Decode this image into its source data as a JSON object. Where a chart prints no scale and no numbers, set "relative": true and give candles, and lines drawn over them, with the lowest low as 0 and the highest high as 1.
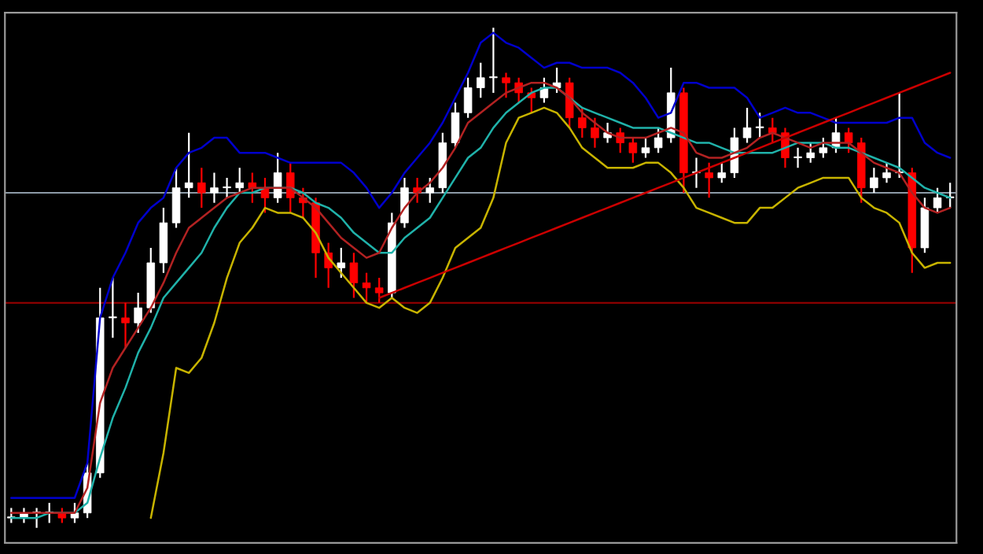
{
  "chart_data": {
    "type": "candlestick",
    "relative": true,
    "categories": [
      null,
      null,
      null,
      null,
      null,
      null,
      null,
      null,
      null,
      null,
      null,
      null,
      null,
      null,
      null,
      null,
      null,
      null,
      null,
      null,
      null,
      null,
      null,
      null,
      null,
      null,
      null,
      null,
      null,
      null,
      null,
      null,
      null,
      null,
      null,
      null,
      null,
      null,
      null,
      null,
      null,
      null,
      null,
      null,
      null,
      null,
      null,
      null,
      null,
      null,
      null,
      null,
      null,
      null,
      null,
      null,
      null,
      null,
      null,
      null,
      null,
      null,
      null,
      null,
      null,
      null,
      null,
      null,
      null,
      null,
      null,
      null,
      null,
      null,
      null
    ],
    "ohlc": [
      [
        0.02,
        0.04,
        0.01,
        0.02
      ],
      [
        0.02,
        0.04,
        0.01,
        0.03
      ],
      [
        0.03,
        0.04,
        0,
        0.03
      ],
      [
        0.03,
        0.05,
        0.01,
        0.03
      ],
      [
        0.03,
        0.04,
        0.01,
        0.02
      ],
      [
        0.02,
        0.05,
        0.01,
        0.03
      ],
      [
        0.03,
        0.13,
        0.02,
        0.11
      ],
      [
        0.11,
        0.48,
        0.1,
        0.42
      ],
      [
        0.42,
        0.5,
        0.38,
        0.42
      ],
      [
        0.42,
        0.45,
        0.36,
        0.41
      ],
      [
        0.41,
        0.47,
        0.39,
        0.44
      ],
      [
        0.44,
        0.56,
        0.43,
        0.53
      ],
      [
        0.53,
        0.64,
        0.51,
        0.61
      ],
      [
        0.61,
        0.72,
        0.6,
        0.68
      ],
      [
        0.68,
        0.79,
        0.66,
        0.69
      ],
      [
        0.69,
        0.72,
        0.64,
        0.67
      ],
      [
        0.67,
        0.71,
        0.65,
        0.68
      ],
      [
        0.68,
        0.7,
        0.66,
        0.68
      ],
      [
        0.68,
        0.72,
        0.67,
        0.69
      ],
      [
        0.69,
        0.71,
        0.65,
        0.68
      ],
      [
        0.68,
        0.7,
        0.63,
        0.66
      ],
      [
        0.66,
        0.75,
        0.65,
        0.71
      ],
      [
        0.71,
        0.73,
        0.63,
        0.66
      ],
      [
        0.66,
        0.68,
        0.62,
        0.65
      ],
      [
        0.65,
        0.66,
        0.5,
        0.55
      ],
      [
        0.55,
        0.57,
        0.48,
        0.52
      ],
      [
        0.52,
        0.56,
        0.5,
        0.53
      ],
      [
        0.53,
        0.55,
        0.46,
        0.49
      ],
      [
        0.49,
        0.51,
        0.45,
        0.48
      ],
      [
        0.48,
        0.5,
        0.45,
        0.47
      ],
      [
        0.47,
        0.63,
        0.46,
        0.61
      ],
      [
        0.61,
        0.7,
        0.6,
        0.68
      ],
      [
        0.68,
        0.7,
        0.65,
        0.67
      ],
      [
        0.67,
        0.7,
        0.65,
        0.68
      ],
      [
        0.68,
        0.79,
        0.67,
        0.77
      ],
      [
        0.77,
        0.85,
        0.76,
        0.83
      ],
      [
        0.83,
        0.9,
        0.82,
        0.88
      ],
      [
        0.88,
        0.93,
        0.86,
        0.9
      ],
      [
        0.9,
        1,
        0.87,
        0.9
      ],
      [
        0.9,
        0.91,
        0.86,
        0.89
      ],
      [
        0.89,
        0.9,
        0.85,
        0.87
      ],
      [
        0.87,
        0.88,
        0.83,
        0.86
      ],
      [
        0.86,
        0.9,
        0.85,
        0.88
      ],
      [
        0.88,
        0.92,
        0.87,
        0.89
      ],
      [
        0.89,
        0.9,
        0.8,
        0.82
      ],
      [
        0.82,
        0.84,
        0.78,
        0.8
      ],
      [
        0.8,
        0.82,
        0.76,
        0.78
      ],
      [
        0.78,
        0.81,
        0.77,
        0.79
      ],
      [
        0.79,
        0.8,
        0.75,
        0.77
      ],
      [
        0.77,
        0.78,
        0.73,
        0.75
      ],
      [
        0.75,
        0.78,
        0.74,
        0.76
      ],
      [
        0.76,
        0.8,
        0.75,
        0.78
      ],
      [
        0.78,
        0.92,
        0.77,
        0.87
      ],
      [
        0.87,
        0.88,
        0.67,
        0.71
      ],
      [
        0.71,
        0.74,
        0.68,
        0.71
      ],
      [
        0.71,
        0.73,
        0.66,
        0.7
      ],
      [
        0.7,
        0.73,
        0.69,
        0.71
      ],
      [
        0.71,
        0.8,
        0.7,
        0.78
      ],
      [
        0.78,
        0.84,
        0.77,
        0.8
      ],
      [
        0.8,
        0.83,
        0.78,
        0.8
      ],
      [
        0.8,
        0.82,
        0.77,
        0.79
      ],
      [
        0.79,
        0.8,
        0.72,
        0.74
      ],
      [
        0.74,
        0.76,
        0.72,
        0.74
      ],
      [
        0.74,
        0.77,
        0.73,
        0.75
      ],
      [
        0.75,
        0.78,
        0.74,
        0.76
      ],
      [
        0.76,
        0.82,
        0.75,
        0.79
      ],
      [
        0.79,
        0.8,
        0.75,
        0.77
      ],
      [
        0.77,
        0.78,
        0.65,
        0.68
      ],
      [
        0.68,
        0.72,
        0.67,
        0.7
      ],
      [
        0.7,
        0.73,
        0.69,
        0.71
      ],
      [
        0.71,
        0.87,
        0.7,
        0.71
      ],
      [
        0.71,
        0.72,
        0.51,
        0.56
      ],
      [
        0.56,
        0.66,
        0.55,
        0.64
      ],
      [
        0.64,
        0.68,
        0.63,
        0.66
      ],
      [
        0.66,
        0.69,
        0.64,
        0.66
      ]
    ],
    "colors": [
      "#ffffff",
      "#ffffff",
      "#ffffff",
      "#ffffff",
      "#ff0000",
      "#ffffff",
      "#ffffff",
      "#ffffff",
      "#ffffff",
      "#ff0000",
      "#ffffff",
      "#ffffff",
      "#ffffff",
      "#ffffff",
      "#ffffff",
      "#ff0000",
      "#ffffff",
      "#ffffff",
      "#ffffff",
      "#ff0000",
      "#ff0000",
      "#ffffff",
      "#ff0000",
      "#ff0000",
      "#ff0000",
      "#ff0000",
      "#ffffff",
      "#ff0000",
      "#ff0000",
      "#ff0000",
      "#ffffff",
      "#ffffff",
      "#ff0000",
      "#ffffff",
      "#ffffff",
      "#ffffff",
      "#ffffff",
      "#ffffff",
      "#ffffff",
      "#ff0000",
      "#ff0000",
      "#ff0000",
      "#ffffff",
      "#ffffff",
      "#ff0000",
      "#ff0000",
      "#ff0000",
      "#ffffff",
      "#ff0000",
      "#ff0000",
      "#ffffff",
      "#ffffff",
      "#ffffff",
      "#ff0000",
      "#ffffff",
      "#ff0000",
      "#ffffff",
      "#ffffff",
      "#ffffff",
      "#ffffff",
      "#ff0000",
      "#ff0000",
      "#ffffff",
      "#ffffff",
      "#ffffff",
      "#ffffff",
      "#ff0000",
      "#ff0000",
      "#ffffff",
      "#ffffff",
      "#ffffff",
      "#ff0000",
      "#ffffff",
      "#ffffff",
      "#ffffff"
    ],
    "series": [
      {
        "type": "line",
        "color": "#0000cd",
        "values": [
          0.06,
          0.06,
          0.06,
          0.06,
          0.06,
          0.06,
          0.13,
          0.42,
          0.5,
          0.55,
          0.61,
          0.64,
          0.66,
          0.72,
          0.75,
          0.76,
          0.78,
          0.78,
          0.75,
          0.75,
          0.75,
          0.74,
          0.73,
          0.73,
          0.73,
          0.73,
          0.73,
          0.71,
          0.68,
          0.64,
          0.67,
          0.71,
          0.74,
          0.77,
          0.81,
          0.86,
          0.91,
          0.97,
          0.99,
          0.97,
          0.96,
          0.94,
          0.92,
          0.93,
          0.93,
          0.92,
          0.92,
          0.92,
          0.91,
          0.89,
          0.86,
          0.82,
          0.83,
          0.89,
          0.89,
          0.88,
          0.88,
          0.88,
          0.86,
          0.82,
          0.83,
          0.84,
          0.83,
          0.83,
          0.82,
          0.81,
          0.81,
          0.81,
          0.81,
          0.81,
          0.82,
          0.82,
          0.77,
          0.75,
          0.74
        ]
      },
      {
        "type": "line",
        "color": "#20b2aa",
        "values": [
          0.02,
          0.02,
          0.02,
          0.03,
          0.03,
          0.03,
          0.05,
          0.14,
          0.22,
          0.28,
          0.35,
          0.4,
          0.46,
          0.49,
          0.52,
          0.55,
          0.6,
          0.64,
          0.67,
          0.67,
          0.68,
          0.68,
          0.68,
          0.67,
          0.65,
          0.64,
          0.62,
          0.59,
          0.57,
          0.55,
          0.55,
          0.58,
          0.6,
          0.62,
          0.66,
          0.7,
          0.74,
          0.76,
          0.8,
          0.83,
          0.85,
          0.87,
          0.88,
          0.88,
          0.86,
          0.84,
          0.83,
          0.82,
          0.81,
          0.8,
          0.8,
          0.8,
          0.79,
          0.78,
          0.77,
          0.77,
          0.76,
          0.75,
          0.75,
          0.75,
          0.75,
          0.76,
          0.77,
          0.77,
          0.77,
          0.76,
          0.76,
          0.75,
          0.74,
          0.73,
          0.72,
          0.7,
          0.68,
          0.67,
          0.66
        ]
      },
      {
        "type": "line",
        "color": "#b22222",
        "values": [
          0.03,
          0.03,
          0.03,
          0.03,
          0.03,
          0.03,
          0.08,
          0.25,
          0.32,
          0.36,
          0.4,
          0.44,
          0.49,
          0.55,
          0.6,
          0.62,
          0.64,
          0.66,
          0.67,
          0.68,
          0.68,
          0.68,
          0.68,
          0.66,
          0.64,
          0.61,
          0.58,
          0.56,
          0.54,
          0.55,
          0.6,
          0.64,
          0.67,
          0.69,
          0.72,
          0.76,
          0.81,
          0.83,
          0.85,
          0.87,
          0.88,
          0.89,
          0.89,
          0.88,
          0.86,
          0.83,
          0.81,
          0.79,
          0.78,
          0.78,
          0.78,
          0.79,
          0.8,
          0.79,
          0.75,
          0.74,
          0.74,
          0.75,
          0.76,
          0.78,
          0.79,
          0.78,
          0.77,
          0.76,
          0.77,
          0.77,
          0.77,
          0.75,
          0.73,
          0.72,
          0.71,
          0.67,
          0.64,
          0.63,
          0.64
        ]
      },
      {
        "type": "line",
        "color": "#c8b400",
        "values": [
          null,
          null,
          null,
          null,
          null,
          null,
          null,
          null,
          null,
          null,
          null,
          0.02,
          0.15,
          0.32,
          0.31,
          0.34,
          0.41,
          0.5,
          0.57,
          0.6,
          0.64,
          0.63,
          0.63,
          0.62,
          0.59,
          0.54,
          0.51,
          0.48,
          0.45,
          0.44,
          0.46,
          0.44,
          0.43,
          0.45,
          0.5,
          0.56,
          0.58,
          0.6,
          0.66,
          0.77,
          0.82,
          0.83,
          0.84,
          0.83,
          0.8,
          0.76,
          0.74,
          0.72,
          0.72,
          0.72,
          0.73,
          0.73,
          0.71,
          0.68,
          0.64,
          0.63,
          0.62,
          0.61,
          0.61,
          0.64,
          0.64,
          0.66,
          0.68,
          0.69,
          0.7,
          0.7,
          0.7,
          0.66,
          0.64,
          0.63,
          0.61,
          0.55,
          0.52,
          0.53,
          0.53
        ]
      },
      {
        "type": "line",
        "color": "#cc0000",
        "values": [
          null,
          null,
          null,
          null,
          null,
          null,
          null,
          null,
          null,
          null,
          null,
          null,
          null,
          null,
          null,
          null,
          null,
          null,
          null,
          null,
          null,
          null,
          null,
          null,
          null,
          null,
          null,
          null,
          null,
          0.46,
          0.47,
          0.48,
          0.49,
          0.5,
          0.51,
          0.52,
          0.53,
          0.54,
          0.55,
          0.56,
          0.57,
          0.58,
          0.59,
          0.6,
          0.61,
          0.62,
          0.63,
          0.64,
          0.65,
          0.66,
          0.67,
          0.68,
          0.69,
          0.7,
          0.71,
          0.72,
          0.73,
          0.74,
          0.75,
          0.76,
          0.77,
          0.78,
          0.79,
          0.8,
          0.81,
          0.82,
          0.83,
          0.84,
          0.85,
          0.86,
          0.87,
          0.88,
          0.89,
          0.9,
          0.91
        ]
      }
    ],
    "ref_lines": [
      {
        "axis": "y",
        "value": 0.67,
        "color": "#8c9aa6"
      },
      {
        "axis": "y",
        "value": 0.45,
        "color": "#8b0000"
      }
    ]
  }
}
